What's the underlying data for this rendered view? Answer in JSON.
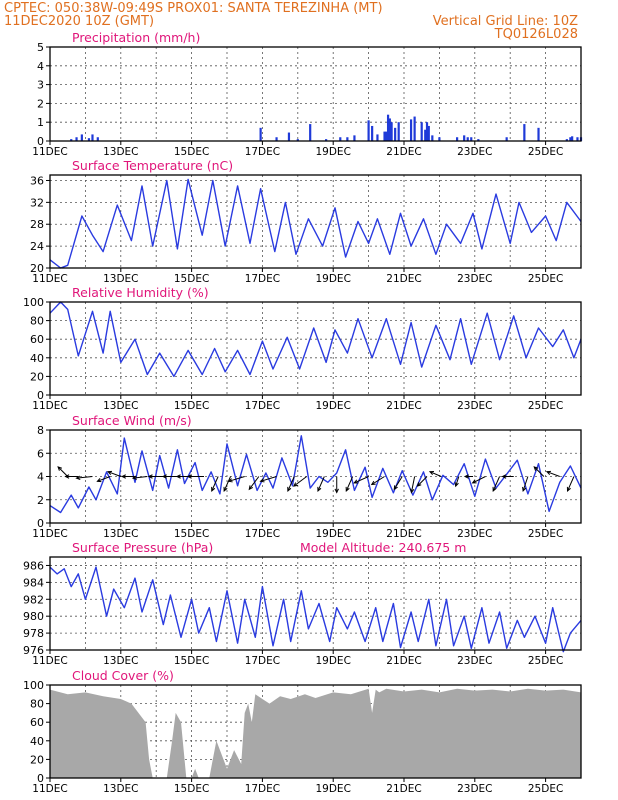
{
  "header": {
    "line1_left": "CPTEC:   050:38W-09:49S   PROX01: SANTA TEREZINHA (MT)",
    "line2_left": "11DEC2020  10Z (GMT)",
    "line2_right": "Vertical Grid Line: 10Z",
    "line3_right": "TQ0126L028"
  },
  "colors": {
    "header": "#e07020",
    "title": "#e0167a",
    "series": "#2a3be0",
    "bars": "#1f3ad8",
    "cloud": "#a8a8a8",
    "arrows": "#000000"
  },
  "chart_data": [
    {
      "type": "bar",
      "title": "Precipitation (mm/h)",
      "x_tick_labels": [
        "11DEC",
        "13DEC",
        "15DEC",
        "17DEC",
        "19DEC",
        "21DEC",
        "23DEC",
        "25DEC"
      ],
      "x_range_days": [
        0,
        15
      ],
      "ylim": [
        0,
        5
      ],
      "y_ticks": [
        0,
        1,
        2,
        3,
        4,
        5
      ],
      "grid": true,
      "x": [
        0.6,
        0.75,
        0.9,
        1.1,
        1.2,
        1.35,
        5.95,
        6.4,
        6.75,
        7.0,
        7.35,
        7.8,
        8.2,
        8.4,
        8.6,
        9.0,
        9.1,
        9.25,
        9.45,
        9.5,
        9.55,
        9.6,
        9.65,
        9.75,
        9.85,
        10.2,
        10.3,
        10.5,
        10.6,
        10.65,
        10.7,
        10.8,
        11.0,
        11.5,
        11.7,
        11.8,
        11.9,
        12.1,
        12.9,
        13.4,
        13.8,
        14.6,
        14.7,
        14.75,
        14.9,
        15.0
      ],
      "values": [
        0.1,
        0.2,
        0.35,
        0.15,
        0.35,
        0.2,
        0.7,
        0.2,
        0.45,
        0.1,
        0.9,
        0.1,
        0.2,
        0.2,
        0.3,
        1.1,
        0.8,
        0.35,
        0.5,
        0.5,
        1.4,
        1.2,
        1.0,
        0.7,
        1.0,
        1.15,
        1.3,
        1.0,
        0.6,
        1.0,
        0.8,
        0.3,
        0.2,
        0.2,
        0.3,
        0.2,
        0.2,
        0.1,
        0.2,
        0.9,
        0.7,
        0.1,
        0.2,
        0.25,
        0.2,
        0.2
      ]
    },
    {
      "type": "line",
      "title": "Surface Temperature (nC)",
      "x_tick_labels": [
        "11DEC",
        "13DEC",
        "15DEC",
        "17DEC",
        "19DEC",
        "21DEC",
        "23DEC",
        "25DEC"
      ],
      "x_range_days": [
        0,
        15
      ],
      "ylim": [
        20,
        37
      ],
      "y_ticks": [
        20,
        24,
        28,
        32,
        36
      ],
      "grid": true,
      "x": [
        0,
        0.3,
        0.5,
        0.9,
        1.2,
        1.5,
        1.9,
        2.3,
        2.6,
        2.9,
        3.3,
        3.6,
        3.9,
        4.3,
        4.6,
        4.95,
        5.3,
        5.65,
        5.95,
        6.35,
        6.65,
        6.95,
        7.3,
        7.7,
        8.05,
        8.35,
        8.7,
        9.0,
        9.25,
        9.6,
        9.9,
        10.2,
        10.55,
        10.9,
        11.2,
        11.6,
        11.95,
        12.2,
        12.6,
        13.0,
        13.25,
        13.6,
        14.0,
        14.3,
        14.6,
        15.0
      ],
      "values": [
        21.5,
        20,
        20.5,
        29.5,
        26,
        23,
        31.5,
        25,
        35,
        24,
        36,
        23.5,
        36.2,
        26,
        36,
        24,
        35,
        24.5,
        34.5,
        23,
        32,
        22.5,
        29,
        24,
        31,
        22,
        28.5,
        24.5,
        29,
        22.5,
        30,
        24,
        29,
        22.5,
        28,
        24.5,
        30,
        23.5,
        33.5,
        24.5,
        32,
        26.5,
        29.5,
        25,
        32,
        28.5
      ]
    },
    {
      "type": "line",
      "title": "Relative Humidity (%)",
      "x_tick_labels": [
        "11DEC",
        "13DEC",
        "15DEC",
        "17DEC",
        "19DEC",
        "21DEC",
        "23DEC",
        "25DEC"
      ],
      "x_range_days": [
        0,
        15
      ],
      "ylim": [
        0,
        100
      ],
      "y_ticks": [
        0,
        20,
        40,
        60,
        80,
        100
      ],
      "grid": true,
      "x": [
        0,
        0.3,
        0.5,
        0.8,
        1.2,
        1.5,
        1.7,
        2.0,
        2.4,
        2.75,
        3.1,
        3.5,
        3.9,
        4.3,
        4.65,
        4.95,
        5.3,
        5.65,
        6.0,
        6.3,
        6.7,
        7.05,
        7.45,
        7.8,
        8.05,
        8.4,
        8.7,
        9.1,
        9.5,
        9.9,
        10.2,
        10.5,
        10.9,
        11.3,
        11.6,
        11.9,
        12.35,
        12.7,
        13.1,
        13.45,
        13.8,
        14.2,
        14.5,
        14.8,
        15.0
      ],
      "values": [
        88,
        100,
        92,
        42,
        90,
        45,
        90,
        35,
        60,
        22,
        45,
        20,
        48,
        22,
        50,
        25,
        48,
        22,
        58,
        28,
        62,
        28,
        72,
        35,
        70,
        45,
        82,
        40,
        82,
        33,
        78,
        30,
        75,
        38,
        82,
        33,
        88,
        38,
        85,
        40,
        72,
        52,
        70,
        40,
        60
      ]
    },
    {
      "type": "line",
      "title": "Surface Wind (m/s)",
      "x_tick_labels": [
        "11DEC",
        "13DEC",
        "15DEC",
        "17DEC",
        "19DEC",
        "21DEC",
        "23DEC",
        "25DEC"
      ],
      "x_range_days": [
        0,
        15
      ],
      "ylim": [
        0,
        8
      ],
      "y_ticks": [
        0,
        2,
        4,
        6,
        8
      ],
      "grid": true,
      "x": [
        0,
        0.3,
        0.6,
        0.8,
        1.1,
        1.3,
        1.6,
        1.9,
        2.1,
        2.4,
        2.6,
        2.9,
        3.1,
        3.35,
        3.6,
        3.8,
        4.1,
        4.3,
        4.55,
        4.8,
        5.0,
        5.3,
        5.55,
        5.85,
        6.1,
        6.3,
        6.55,
        6.85,
        7.1,
        7.35,
        7.6,
        7.85,
        8.1,
        8.35,
        8.6,
        8.9,
        9.1,
        9.4,
        9.7,
        9.95,
        10.25,
        10.55,
        10.8,
        11.1,
        11.4,
        11.7,
        12.0,
        12.3,
        12.6,
        12.9,
        13.2,
        13.5,
        13.8,
        14.1,
        14.4,
        14.7,
        15.0
      ],
      "values": [
        1.5,
        0.9,
        2.4,
        1.3,
        3.1,
        2.0,
        4.4,
        2.5,
        7.3,
        3.5,
        6.2,
        2.8,
        5.8,
        3.0,
        6.3,
        3.4,
        5.2,
        2.8,
        4.4,
        2.5,
        6.8,
        3.2,
        5.9,
        2.8,
        4.3,
        3.0,
        5.6,
        3.2,
        7.5,
        3.0,
        4.0,
        3.5,
        4.3,
        6.3,
        2.8,
        4.8,
        2.2,
        4.7,
        2.6,
        4.5,
        2.4,
        4.4,
        2.0,
        4.1,
        3.3,
        5.1,
        2.3,
        5.5,
        3.0,
        4.2,
        5.4,
        2.5,
        5.1,
        1.0,
        3.5,
        4.9,
        3.0
      ],
      "arrows": {
        "x": [
          0.5,
          0.8,
          1.2,
          1.7,
          2.0,
          2.4,
          2.75,
          3.2,
          3.6,
          3.95,
          4.35,
          4.75,
          5.1,
          5.5,
          5.9,
          6.4,
          6.9,
          7.25,
          7.75,
          8.1,
          8.55,
          9.0,
          9.45,
          9.95,
          10.3,
          10.65,
          11.05,
          11.55,
          11.95,
          12.3,
          12.7,
          13.1,
          13.5,
          13.95,
          14.4,
          14.8
        ],
        "u": [
          -0.6,
          -0.8,
          -1.0,
          -0.8,
          -0.8,
          -0.8,
          -0.9,
          -0.9,
          -0.9,
          -0.8,
          -1.0,
          -0.4,
          -0.4,
          -1.0,
          -0.6,
          -1.0,
          -0.4,
          -0.8,
          -0.4,
          0.0,
          -0.4,
          -0.9,
          -0.8,
          -0.5,
          -0.2,
          -0.6,
          -0.7,
          -0.2,
          -0.5,
          -0.8,
          -0.4,
          -0.7,
          -0.3,
          -0.6,
          -0.8,
          -0.4
        ],
        "v": [
          0.6,
          0.0,
          -0.1,
          -0.3,
          0.3,
          0.0,
          -0.1,
          0.0,
          0.0,
          0.0,
          0.0,
          -0.9,
          -0.9,
          -0.3,
          -0.8,
          -0.3,
          -0.9,
          -0.6,
          -0.9,
          -1.0,
          -0.9,
          -0.4,
          -0.5,
          -0.8,
          -1.0,
          -0.6,
          0.3,
          -0.6,
          0.0,
          -0.4,
          -0.9,
          0.0,
          -0.9,
          0.6,
          0.3,
          -0.9
        ]
      }
    },
    {
      "type": "line",
      "title": "Surface Pressure (hPa)",
      "subtitle": "Model Altitude: 240.675  m",
      "x_tick_labels": [
        "11DEC",
        "13DEC",
        "15DEC",
        "17DEC",
        "19DEC",
        "21DEC",
        "23DEC",
        "25DEC"
      ],
      "x_range_days": [
        0,
        15
      ],
      "ylim": [
        976,
        987
      ],
      "y_ticks": [
        976,
        978,
        980,
        982,
        984,
        986
      ],
      "grid": true,
      "x": [
        0,
        0.2,
        0.4,
        0.6,
        0.8,
        1.0,
        1.3,
        1.6,
        1.8,
        2.1,
        2.4,
        2.6,
        2.9,
        3.2,
        3.4,
        3.7,
        4.0,
        4.2,
        4.5,
        4.7,
        5.0,
        5.3,
        5.5,
        5.8,
        6.0,
        6.3,
        6.6,
        6.8,
        7.1,
        7.3,
        7.6,
        7.9,
        8.1,
        8.4,
        8.6,
        8.9,
        9.2,
        9.4,
        9.7,
        9.9,
        10.2,
        10.4,
        10.7,
        10.9,
        11.2,
        11.4,
        11.7,
        11.9,
        12.2,
        12.4,
        12.7,
        12.9,
        13.2,
        13.4,
        13.7,
        14.0,
        14.2,
        14.5,
        14.7,
        15.0
      ],
      "values": [
        985.8,
        985.0,
        985.6,
        983.5,
        985.0,
        982.0,
        985.8,
        980.0,
        983.2,
        981.0,
        984.5,
        980.5,
        984.3,
        979.0,
        982.5,
        977.5,
        982.0,
        978.0,
        981.0,
        977.0,
        983.0,
        976.8,
        982.0,
        977.5,
        983.5,
        976.5,
        982.0,
        977.0,
        983.0,
        978.5,
        981.5,
        977.0,
        981.0,
        978.5,
        980.5,
        977.0,
        981.0,
        977.0,
        981.5,
        976.3,
        980.5,
        977.0,
        982.0,
        976.5,
        982.0,
        976.5,
        980.0,
        976.2,
        981.0,
        976.8,
        980.5,
        976.2,
        979.5,
        977.5,
        980.0,
        976.8,
        981.0,
        975.8,
        978.0,
        979.5
      ]
    },
    {
      "type": "area",
      "title": "Cloud Cover (%)",
      "x_tick_labels": [
        "11DEC",
        "13DEC",
        "15DEC",
        "17DEC",
        "19DEC",
        "21DEC",
        "23DEC",
        "25DEC"
      ],
      "x_range_days": [
        0,
        15
      ],
      "ylim": [
        0,
        100
      ],
      "y_ticks": [
        0,
        20,
        40,
        60,
        80,
        100
      ],
      "grid": true,
      "x": [
        0,
        0.5,
        1.0,
        1.5,
        2.0,
        2.3,
        2.7,
        2.8,
        2.9,
        3.0,
        3.15,
        3.3,
        3.45,
        3.55,
        3.7,
        3.85,
        4.0,
        4.1,
        4.2,
        4.5,
        4.6,
        4.7,
        5.0,
        5.2,
        5.4,
        5.5,
        5.6,
        5.7,
        5.8,
        6.0,
        6.2,
        6.5,
        6.8,
        7.2,
        7.5,
        8.0,
        8.5,
        9.0,
        9.1,
        9.2,
        9.3,
        9.5,
        10.0,
        10.5,
        11.0,
        11.5,
        12.0,
        12.5,
        13.0,
        13.5,
        14.0,
        14.5,
        15.0
      ],
      "values": [
        95,
        90,
        92,
        88,
        85,
        80,
        60,
        20,
        0,
        0,
        0,
        0,
        40,
        70,
        60,
        0,
        0,
        10,
        0,
        0,
        20,
        40,
        10,
        30,
        15,
        70,
        80,
        60,
        90,
        85,
        80,
        88,
        85,
        90,
        86,
        92,
        90,
        96,
        70,
        95,
        92,
        96,
        93,
        95,
        92,
        96,
        94,
        95,
        93,
        96,
        94,
        95,
        92
      ]
    }
  ]
}
